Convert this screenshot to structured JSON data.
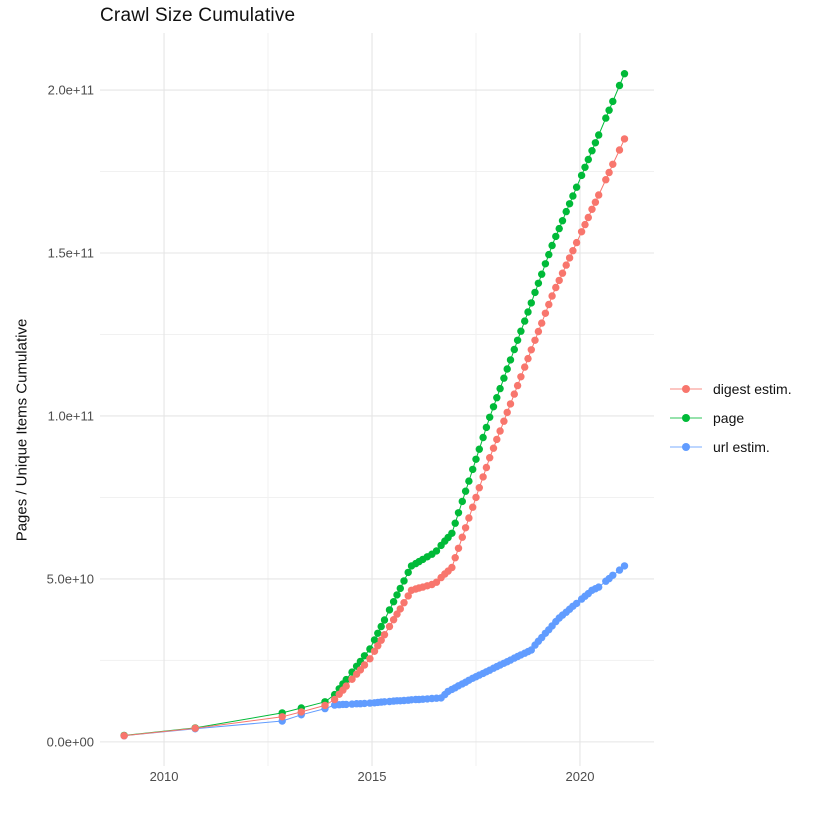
{
  "title": "Crawl Size Cumulative",
  "chart_data": {
    "type": "line",
    "title": "Crawl Size Cumulative",
    "xlabel": "",
    "ylabel": "Pages / Unique Items Cumulative",
    "legend_position": "right",
    "grid": "on",
    "unit_note": "series values are pages / unique items in billions (1e9)",
    "xlim": [
      2008.46,
      2021.78
    ],
    "ylim": [
      -7.4,
      217.5
    ],
    "x_ticks": [
      2010,
      2015,
      2020
    ],
    "x_tick_labels": [
      "2010",
      "2015",
      "2020"
    ],
    "x_minor_ticks": [
      2012.5,
      2017.5
    ],
    "y_ticks": [
      0,
      50,
      100,
      150,
      200
    ],
    "y_tick_labels": [
      "0.0e+00",
      "5.0e+10",
      "1.0e+11",
      "1.5e+11",
      "2.0e+11"
    ],
    "y_minor_ticks": [
      25,
      75,
      125,
      175
    ],
    "x": [
      2009.04,
      2010.75,
      2012.84,
      2013.3,
      2013.87,
      2014.1,
      2014.21,
      2014.3,
      2014.38,
      2014.52,
      2014.63,
      2014.72,
      2014.82,
      2014.95,
      2015.06,
      2015.14,
      2015.22,
      2015.3,
      2015.42,
      2015.52,
      2015.6,
      2015.68,
      2015.77,
      2015.87,
      2015.95,
      2016.05,
      2016.13,
      2016.22,
      2016.33,
      2016.44,
      2016.55,
      2016.66,
      2016.75,
      2016.83,
      2016.92,
      2017.0,
      2017.08,
      2017.17,
      2017.25,
      2017.33,
      2017.42,
      2017.5,
      2017.58,
      2017.67,
      2017.75,
      2017.83,
      2017.92,
      2018.0,
      2018.08,
      2018.17,
      2018.25,
      2018.33,
      2018.42,
      2018.5,
      2018.58,
      2018.67,
      2018.75,
      2018.83,
      2018.92,
      2019.0,
      2019.08,
      2019.17,
      2019.25,
      2019.33,
      2019.42,
      2019.5,
      2019.58,
      2019.67,
      2019.75,
      2019.83,
      2019.92,
      2020.04,
      2020.12,
      2020.2,
      2020.29,
      2020.37,
      2020.45,
      2020.62,
      2020.7,
      2020.79,
      2020.95,
      2021.07
    ],
    "series": [
      {
        "name": "digest estim.",
        "color": "#F8766D",
        "values": [
          1.9,
          4.2,
          7.7,
          9.2,
          11.2,
          13.0,
          14.6,
          15.9,
          17.1,
          19.2,
          20.8,
          22.1,
          23.6,
          25.5,
          27.8,
          29.5,
          31.2,
          32.9,
          35.4,
          37.5,
          39.2,
          40.8,
          42.7,
          44.8,
          46.5,
          46.9,
          47.2,
          47.5,
          47.9,
          48.3,
          49.0,
          50.4,
          51.5,
          52.4,
          53.5,
          56.5,
          59.4,
          62.8,
          65.7,
          68.7,
          72.0,
          75.0,
          78.0,
          81.3,
          84.2,
          87.2,
          90.1,
          92.8,
          95.4,
          98.4,
          101.1,
          103.7,
          106.7,
          109.3,
          112.0,
          115.0,
          117.6,
          120.3,
          123.2,
          125.9,
          128.5,
          131.5,
          134.2,
          136.8,
          139.4,
          141.6,
          143.8,
          146.3,
          148.5,
          150.7,
          153.2,
          156.5,
          158.7,
          160.9,
          163.4,
          165.6,
          167.8,
          172.5,
          174.7,
          177.2,
          181.6,
          185.0
        ]
      },
      {
        "name": "page",
        "color": "#00BA38",
        "values": [
          2.0,
          4.3,
          8.9,
          10.4,
          12.3,
          14.5,
          16.3,
          17.8,
          19.1,
          21.4,
          23.2,
          24.7,
          26.4,
          28.5,
          31.3,
          33.3,
          35.4,
          37.4,
          40.5,
          43.0,
          45.1,
          47.1,
          49.4,
          52.0,
          54.0,
          54.7,
          55.3,
          56.0,
          56.8,
          57.6,
          58.6,
          60.3,
          61.6,
          62.7,
          64.0,
          67.1,
          70.3,
          73.8,
          76.9,
          80.0,
          83.6,
          86.7,
          89.8,
          93.4,
          96.5,
          99.6,
          102.8,
          105.6,
          108.4,
          111.6,
          114.4,
          117.2,
          120.4,
          123.2,
          126.0,
          129.1,
          131.9,
          134.7,
          137.9,
          140.7,
          143.5,
          146.7,
          149.5,
          152.3,
          155.1,
          157.5,
          159.9,
          162.7,
          165.1,
          167.5,
          170.2,
          173.8,
          176.3,
          178.7,
          181.4,
          183.8,
          186.2,
          191.4,
          193.8,
          196.5,
          201.4,
          205.0
        ]
      },
      {
        "name": "url estim.",
        "color": "#619CFF",
        "values": [
          1.9,
          4.0,
          6.4,
          8.3,
          10.2,
          11.3,
          11.4,
          11.5,
          11.5,
          11.6,
          11.7,
          11.7,
          11.8,
          11.9,
          12.0,
          12.1,
          12.2,
          12.3,
          12.4,
          12.5,
          12.6,
          12.6,
          12.7,
          12.8,
          12.9,
          13.0,
          13.0,
          13.1,
          13.2,
          13.3,
          13.4,
          13.5,
          14.5,
          15.5,
          16.1,
          16.6,
          17.2,
          17.8,
          18.3,
          18.9,
          19.5,
          20.0,
          20.5,
          21.0,
          21.5,
          22.0,
          22.6,
          23.1,
          23.6,
          24.1,
          24.6,
          25.1,
          25.7,
          26.2,
          26.7,
          27.2,
          27.7,
          28.2,
          29.7,
          30.9,
          32.0,
          33.3,
          34.4,
          35.6,
          36.9,
          38.0,
          38.9,
          39.8,
          40.7,
          41.6,
          42.5,
          43.8,
          44.7,
          45.5,
          46.5,
          47.0,
          47.5,
          49.3,
          50.1,
          51.1,
          52.7,
          54.0
        ]
      }
    ]
  },
  "legend": {
    "items": [
      {
        "label": "digest estim.",
        "color": "#F8766D"
      },
      {
        "label": "page",
        "color": "#00BA38"
      },
      {
        "label": "url estim.",
        "color": "#619CFF"
      }
    ]
  },
  "style": {
    "grid_major_color": "#e5e5e5",
    "grid_minor_color": "#f1f1f1",
    "tick_text_color": "#4d4d4d",
    "background": "#ffffff"
  }
}
